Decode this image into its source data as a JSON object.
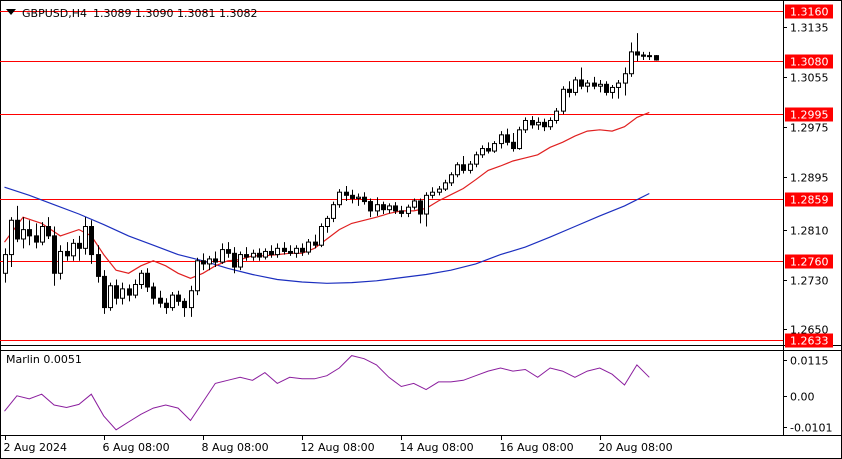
{
  "header": {
    "symbol": "GBPUSD,H4",
    "ohlc": "1.3089 1.3090 1.3081 1.3082"
  },
  "colors": {
    "candle_outline": "#000000",
    "bull_fill": "#ffffff",
    "bear_fill": "#000000",
    "level_line": "#ff0000",
    "level_label_bg": "#ff0000",
    "level_label_text": "#ffffff",
    "ma_fast": "#e02020",
    "ma_slow": "#1c2fbf",
    "oscillator": "#8b1e9e",
    "grid_axis": "#000000",
    "background": "#ffffff"
  },
  "chart_data": [
    {
      "type": "candlestick",
      "title": "GBPUSD,H4",
      "x_labels": [
        "2 Aug 2024",
        "6 Aug 08:00",
        "8 Aug 08:00",
        "12 Aug 08:00",
        "14 Aug 08:00",
        "16 Aug 08:00",
        "20 Aug 08:00"
      ],
      "x_label_bar_index": [
        0,
        16,
        32,
        48,
        64,
        80,
        96
      ],
      "y_ticks": [
        "1.3135",
        "1.3055",
        "1.2975",
        "1.2895",
        "1.2810",
        "1.2730",
        "1.2650"
      ],
      "ylim": [
        1.2625,
        1.3175
      ],
      "levels": [
        "1.3160",
        "1.3080",
        "1.2995",
        "1.2859",
        "1.2760",
        "1.2633"
      ],
      "candles": [
        [
          1.274,
          1.278,
          1.2725,
          1.277
        ],
        [
          1.277,
          1.283,
          1.275,
          1.2825
        ],
        [
          1.2825,
          1.2848,
          1.279,
          1.2795
        ],
        [
          1.2795,
          1.283,
          1.278,
          1.281
        ],
        [
          1.281,
          1.2825,
          1.2785,
          1.28
        ],
        [
          1.28,
          1.282,
          1.278,
          1.279
        ],
        [
          1.279,
          1.2822,
          1.2785,
          1.2815
        ],
        [
          1.2815,
          1.283,
          1.2795,
          1.28
        ],
        [
          1.28,
          1.2815,
          1.272,
          1.274
        ],
        [
          1.274,
          1.2785,
          1.273,
          1.2775
        ],
        [
          1.2775,
          1.279,
          1.276,
          1.2768
        ],
        [
          1.2768,
          1.2795,
          1.276,
          1.2788
        ],
        [
          1.2788,
          1.28,
          1.276,
          1.278
        ],
        [
          1.278,
          1.283,
          1.277,
          1.2815
        ],
        [
          1.2815,
          1.2825,
          1.2755,
          1.277
        ],
        [
          1.277,
          1.2785,
          1.2725,
          1.2735
        ],
        [
          1.2735,
          1.2745,
          1.2675,
          1.2685
        ],
        [
          1.2685,
          1.2725,
          1.268,
          1.272
        ],
        [
          1.272,
          1.273,
          1.269,
          1.27
        ],
        [
          1.27,
          1.2725,
          1.269,
          1.2715
        ],
        [
          1.2715,
          1.2722,
          1.2695,
          1.2705
        ],
        [
          1.2705,
          1.273,
          1.27,
          1.2722
        ],
        [
          1.2722,
          1.2745,
          1.2715,
          1.274
        ],
        [
          1.274,
          1.2748,
          1.271,
          1.2718
        ],
        [
          1.2718,
          1.2725,
          1.269,
          1.27
        ],
        [
          1.27,
          1.2712,
          1.2685,
          1.2692
        ],
        [
          1.2692,
          1.27,
          1.2675,
          1.2685
        ],
        [
          1.2685,
          1.271,
          1.268,
          1.2705
        ],
        [
          1.2705,
          1.2712,
          1.2688,
          1.2695
        ],
        [
          1.2695,
          1.27,
          1.267,
          1.2685
        ],
        [
          1.2685,
          1.272,
          1.267,
          1.2712
        ],
        [
          1.2712,
          1.2765,
          1.2705,
          1.276
        ],
        [
          1.276,
          1.2772,
          1.2745,
          1.2755
        ],
        [
          1.2755,
          1.2768,
          1.2745,
          1.2763
        ],
        [
          1.2763,
          1.2775,
          1.275,
          1.2758
        ],
        [
          1.2758,
          1.2788,
          1.2755,
          1.2778
        ],
        [
          1.2778,
          1.279,
          1.2765,
          1.2772
        ],
        [
          1.2772,
          1.2782,
          1.274,
          1.275
        ],
        [
          1.275,
          1.2775,
          1.2745,
          1.277
        ],
        [
          1.277,
          1.2782,
          1.276,
          1.2766
        ],
        [
          1.2766,
          1.2778,
          1.276,
          1.2772
        ],
        [
          1.2772,
          1.278,
          1.276,
          1.2766
        ],
        [
          1.2766,
          1.278,
          1.2762,
          1.2775
        ],
        [
          1.2775,
          1.2785,
          1.2765,
          1.277
        ],
        [
          1.277,
          1.2788,
          1.2765,
          1.278
        ],
        [
          1.278,
          1.279,
          1.277,
          1.2775
        ],
        [
          1.2775,
          1.2785,
          1.2768,
          1.2772
        ],
        [
          1.2772,
          1.2785,
          1.2765,
          1.278
        ],
        [
          1.278,
          1.2788,
          1.2768,
          1.2774
        ],
        [
          1.2774,
          1.2795,
          1.277,
          1.279
        ],
        [
          1.279,
          1.2802,
          1.278,
          1.2785
        ],
        [
          1.2785,
          1.282,
          1.2782,
          1.2815
        ],
        [
          1.2815,
          1.2832,
          1.2805,
          1.2828
        ],
        [
          1.2828,
          1.2855,
          1.2822,
          1.285
        ],
        [
          1.285,
          1.2875,
          1.2845,
          1.287
        ],
        [
          1.287,
          1.288,
          1.2856,
          1.2865
        ],
        [
          1.2865,
          1.2874,
          1.2852,
          1.286
        ],
        [
          1.286,
          1.2868,
          1.2848,
          1.2862
        ],
        [
          1.2862,
          1.287,
          1.285,
          1.2855
        ],
        [
          1.2855,
          1.286,
          1.283,
          1.284
        ],
        [
          1.284,
          1.2862,
          1.2832,
          1.285
        ],
        [
          1.285,
          1.2855,
          1.2835,
          1.2842
        ],
        [
          1.2842,
          1.2852,
          1.2836,
          1.2848
        ],
        [
          1.2848,
          1.2854,
          1.2835,
          1.284
        ],
        [
          1.284,
          1.2848,
          1.283,
          1.2836
        ],
        [
          1.2836,
          1.285,
          1.283,
          1.2846
        ],
        [
          1.2846,
          1.286,
          1.2842,
          1.2856
        ],
        [
          1.2856,
          1.286,
          1.282,
          1.2835
        ],
        [
          1.2835,
          1.287,
          1.2815,
          1.2865
        ],
        [
          1.2865,
          1.2878,
          1.286,
          1.287
        ],
        [
          1.287,
          1.288,
          1.2865,
          1.2875
        ],
        [
          1.2875,
          1.289,
          1.2872,
          1.2885
        ],
        [
          1.2885,
          1.2902,
          1.288,
          1.2898
        ],
        [
          1.2898,
          1.2918,
          1.2894,
          1.2914
        ],
        [
          1.2914,
          1.2928,
          1.29,
          1.2905
        ],
        [
          1.2905,
          1.292,
          1.29,
          1.2915
        ],
        [
          1.2915,
          1.2935,
          1.291,
          1.293
        ],
        [
          1.293,
          1.2945,
          1.2925,
          1.294
        ],
        [
          1.294,
          1.295,
          1.2932,
          1.2936
        ],
        [
          1.2936,
          1.2952,
          1.2933,
          1.2948
        ],
        [
          1.2948,
          1.2968,
          1.294,
          1.2962
        ],
        [
          1.2962,
          1.2972,
          1.2945,
          1.295
        ],
        [
          1.295,
          1.2965,
          1.2935,
          1.294
        ],
        [
          1.294,
          1.2975,
          1.2938,
          1.297
        ],
        [
          1.297,
          1.299,
          1.2965,
          1.2985
        ],
        [
          1.2985,
          1.2992,
          1.2972,
          1.2978
        ],
        [
          1.2978,
          1.299,
          1.297,
          1.2982
        ],
        [
          1.2982,
          1.2988,
          1.2968,
          1.2975
        ],
        [
          1.2975,
          1.299,
          1.297,
          1.2985
        ],
        [
          1.2985,
          1.3005,
          1.298,
          1.3
        ],
        [
          1.3,
          1.304,
          1.2995,
          1.3035
        ],
        [
          1.3035,
          1.3048,
          1.3022,
          1.303
        ],
        [
          1.303,
          1.3055,
          1.3025,
          1.305
        ],
        [
          1.305,
          1.307,
          1.3035,
          1.304
        ],
        [
          1.304,
          1.305,
          1.303,
          1.3045
        ],
        [
          1.3045,
          1.3055,
          1.3035,
          1.304
        ],
        [
          1.304,
          1.305,
          1.303,
          1.3043
        ],
        [
          1.3043,
          1.3048,
          1.3025,
          1.303
        ],
        [
          1.303,
          1.3042,
          1.302,
          1.3038
        ],
        [
          1.3038,
          1.305,
          1.302,
          1.3045
        ],
        [
          1.3045,
          1.307,
          1.3025,
          1.306
        ],
        [
          1.306,
          1.311,
          1.3055,
          1.3095
        ],
        [
          1.3095,
          1.3125,
          1.308,
          1.309
        ],
        [
          1.309,
          1.3095,
          1.3082,
          1.3088
        ],
        [
          1.3088,
          1.3095,
          1.3082,
          1.3089
        ],
        [
          1.3089,
          1.309,
          1.3081,
          1.3082
        ]
      ],
      "ma_fast": [
        [
          0,
          1.279
        ],
        [
          3,
          1.283
        ],
        [
          6,
          1.282
        ],
        [
          9,
          1.28
        ],
        [
          12,
          1.281
        ],
        [
          14,
          1.28
        ],
        [
          16,
          1.277
        ],
        [
          18,
          1.2745
        ],
        [
          20,
          1.274
        ],
        [
          22,
          1.2752
        ],
        [
          24,
          1.276
        ],
        [
          26,
          1.2752
        ],
        [
          28,
          1.274
        ],
        [
          30,
          1.2732
        ],
        [
          32,
          1.274
        ],
        [
          34,
          1.2752
        ],
        [
          36,
          1.276
        ],
        [
          38,
          1.2762
        ],
        [
          40,
          1.2768
        ],
        [
          42,
          1.2768
        ],
        [
          44,
          1.277
        ],
        [
          46,
          1.2772
        ],
        [
          48,
          1.2772
        ],
        [
          50,
          1.278
        ],
        [
          52,
          1.2795
        ],
        [
          54,
          1.281
        ],
        [
          56,
          1.282
        ],
        [
          58,
          1.2825
        ],
        [
          60,
          1.283
        ],
        [
          62,
          1.2836
        ],
        [
          64,
          1.284
        ],
        [
          66,
          1.284
        ],
        [
          68,
          1.2844
        ],
        [
          70,
          1.2856
        ],
        [
          72,
          1.2866
        ],
        [
          74,
          1.2876
        ],
        [
          76,
          1.289
        ],
        [
          78,
          1.2905
        ],
        [
          80,
          1.2912
        ],
        [
          82,
          1.292
        ],
        [
          84,
          1.2925
        ],
        [
          86,
          1.293
        ],
        [
          88,
          1.2942
        ],
        [
          90,
          1.295
        ],
        [
          92,
          1.296
        ],
        [
          94,
          1.2968
        ],
        [
          96,
          1.297
        ],
        [
          98,
          1.2968
        ],
        [
          100,
          1.2975
        ],
        [
          102,
          1.299
        ],
        [
          104,
          1.2998
        ]
      ],
      "ma_slow": [
        [
          0,
          1.2878
        ],
        [
          4,
          1.2865
        ],
        [
          8,
          1.285
        ],
        [
          12,
          1.2835
        ],
        [
          16,
          1.2818
        ],
        [
          20,
          1.28
        ],
        [
          24,
          1.2785
        ],
        [
          28,
          1.277
        ],
        [
          32,
          1.276
        ],
        [
          36,
          1.2748
        ],
        [
          40,
          1.2738
        ],
        [
          44,
          1.273
        ],
        [
          48,
          1.2726
        ],
        [
          52,
          1.2724
        ],
        [
          56,
          1.2725
        ],
        [
          60,
          1.2728
        ],
        [
          64,
          1.2733
        ],
        [
          68,
          1.2738
        ],
        [
          72,
          1.2745
        ],
        [
          76,
          1.2755
        ],
        [
          80,
          1.277
        ],
        [
          84,
          1.2782
        ],
        [
          88,
          1.2798
        ],
        [
          92,
          1.2815
        ],
        [
          96,
          1.2832
        ],
        [
          100,
          1.2848
        ],
        [
          104,
          1.2868
        ]
      ]
    },
    {
      "type": "line",
      "title": "Marlin 0.0051",
      "y_ticks": [
        "0.0115",
        "0.00",
        "-0.0101"
      ],
      "ylim": [
        -0.0127,
        0.0145
      ],
      "series": [
        {
          "values": [
            [
              0,
              -0.005
            ],
            [
              2,
              0.0
            ],
            [
              4,
              -0.001
            ],
            [
              6,
              0.0005
            ],
            [
              8,
              -0.003
            ],
            [
              10,
              -0.0038
            ],
            [
              12,
              -0.0028
            ],
            [
              14,
              0.0005
            ],
            [
              16,
              -0.0065
            ],
            [
              18,
              -0.011
            ],
            [
              20,
              -0.0085
            ],
            [
              22,
              -0.006
            ],
            [
              24,
              -0.004
            ],
            [
              26,
              -0.003
            ],
            [
              28,
              -0.004
            ],
            [
              30,
              -0.008
            ],
            [
              32,
              -0.002
            ],
            [
              34,
              0.004
            ],
            [
              36,
              0.005
            ],
            [
              38,
              0.006
            ],
            [
              40,
              0.005
            ],
            [
              42,
              0.0075
            ],
            [
              44,
              0.004
            ],
            [
              46,
              0.006
            ],
            [
              48,
              0.0055
            ],
            [
              50,
              0.0055
            ],
            [
              52,
              0.0065
            ],
            [
              54,
              0.009
            ],
            [
              56,
              0.013
            ],
            [
              58,
              0.012
            ],
            [
              60,
              0.01
            ],
            [
              62,
              0.006
            ],
            [
              64,
              0.003
            ],
            [
              66,
              0.004
            ],
            [
              68,
              0.002
            ],
            [
              70,
              0.0045
            ],
            [
              72,
              0.0045
            ],
            [
              74,
              0.005
            ],
            [
              76,
              0.0065
            ],
            [
              78,
              0.008
            ],
            [
              80,
              0.009
            ],
            [
              82,
              0.008
            ],
            [
              84,
              0.0085
            ],
            [
              86,
              0.006
            ],
            [
              88,
              0.009
            ],
            [
              90,
              0.008
            ],
            [
              92,
              0.006
            ],
            [
              94,
              0.008
            ],
            [
              96,
              0.009
            ],
            [
              98,
              0.007
            ],
            [
              100,
              0.0035
            ],
            [
              102,
              0.01
            ],
            [
              104,
              0.006
            ]
          ]
        }
      ]
    }
  ]
}
